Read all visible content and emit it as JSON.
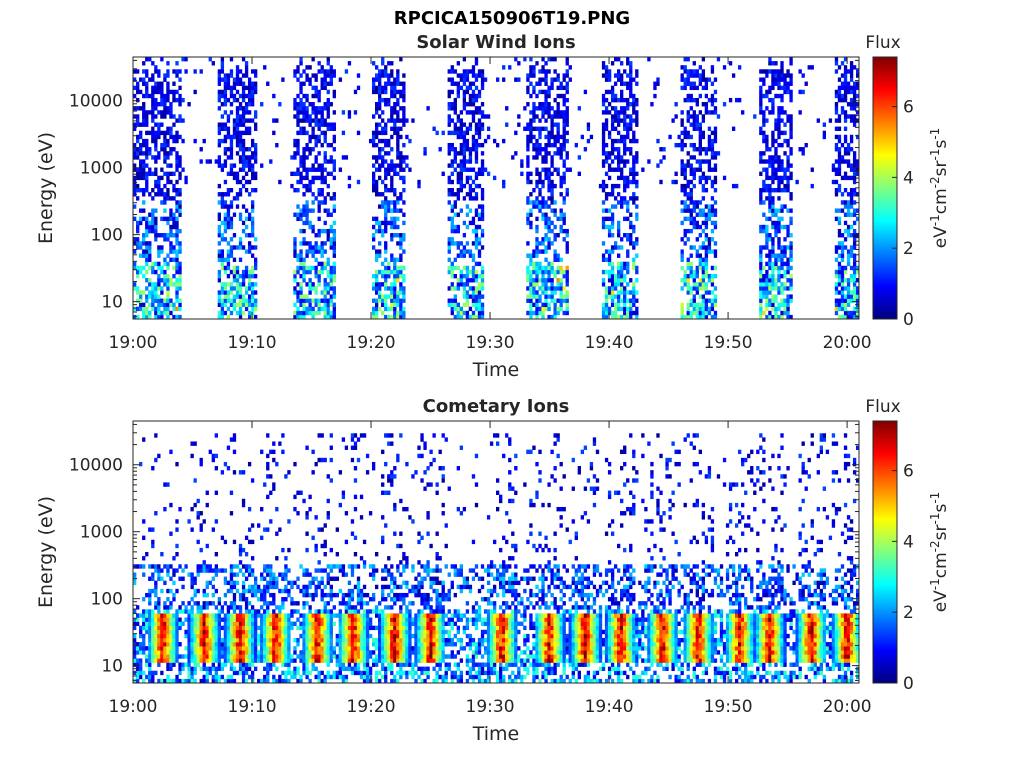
{
  "figure": {
    "title": "RPCICA150906T19.PNG"
  },
  "colormap": [
    "#00007f",
    "#0000ff",
    "#007fff",
    "#00ffff",
    "#7fff7f",
    "#ffff00",
    "#ff7f00",
    "#ff0000",
    "#7f0000"
  ],
  "chart_data": [
    {
      "type": "heatmap",
      "title": "Solar Wind Ions",
      "xlabel": "Time",
      "ylabel": "Energy (eV)",
      "x_ticks": [
        "19:00",
        "19:10",
        "19:20",
        "19:30",
        "19:40",
        "19:50",
        "20:00"
      ],
      "x_tick_minutes": [
        0,
        10,
        20,
        30,
        40,
        50,
        60
      ],
      "x_range_minutes": [
        0,
        61
      ],
      "y_ticks": [
        "10",
        "100",
        "1000",
        "10000"
      ],
      "y_tick_values": [
        10,
        100,
        1000,
        10000
      ],
      "y_scale": "log",
      "y_range": [
        5.5,
        45000
      ],
      "colorbar": {
        "title": "Flux",
        "label": "eV-1cm-2sr-1s-1",
        "ticks": [
          "0",
          "2",
          "4",
          "6"
        ],
        "tick_values": [
          0,
          2,
          4,
          6
        ],
        "range": [
          0,
          7.4
        ]
      },
      "bursts_minutes": [
        [
          0,
          4
        ],
        [
          7,
          10.5
        ],
        [
          13.5,
          17
        ],
        [
          20,
          23
        ],
        [
          26.5,
          29.5
        ],
        [
          33,
          36.5
        ],
        [
          39.5,
          42.5
        ],
        [
          46,
          49
        ],
        [
          52.5,
          55.5
        ],
        [
          59,
          61
        ]
      ],
      "peak_flux": 5
    },
    {
      "type": "heatmap",
      "title": "Cometary Ions",
      "xlabel": "Time",
      "ylabel": "Energy (eV)",
      "x_ticks": [
        "19:00",
        "19:10",
        "19:20",
        "19:30",
        "19:40",
        "19:50",
        "20:00"
      ],
      "x_tick_minutes": [
        0,
        10,
        20,
        30,
        40,
        50,
        60
      ],
      "x_range_minutes": [
        0,
        61
      ],
      "y_ticks": [
        "10",
        "100",
        "1000",
        "10000"
      ],
      "y_tick_values": [
        10,
        100,
        1000,
        10000
      ],
      "y_scale": "log",
      "y_range": [
        5.5,
        45000
      ],
      "colorbar": {
        "title": "Flux",
        "label": "eV-1cm-2sr-1s-1",
        "ticks": [
          "0",
          "2",
          "4",
          "6"
        ],
        "tick_values": [
          0,
          2,
          4,
          6
        ],
        "range": [
          0,
          7.4
        ]
      },
      "hotspots_minutes": [
        2.5,
        6,
        9,
        12,
        15.5,
        18.5,
        22,
        25,
        31,
        35,
        38,
        41,
        44.5,
        47.5,
        51,
        53.5,
        57,
        60
      ],
      "peak_flux": 7.2
    }
  ]
}
